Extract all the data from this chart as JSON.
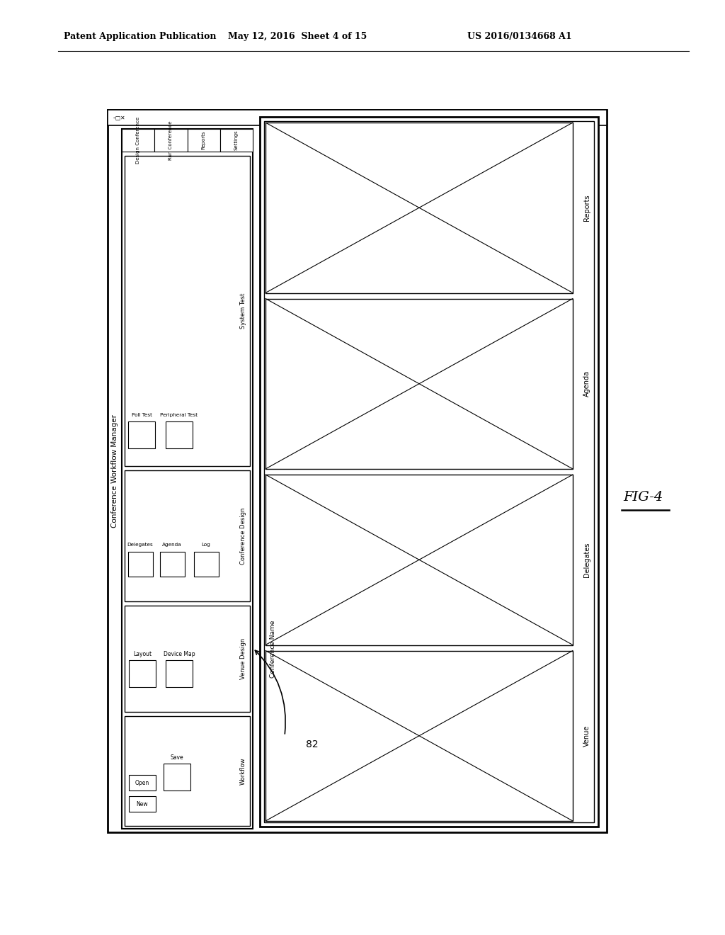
{
  "bg_color": "#ffffff",
  "header_left": "Patent Application Publication",
  "header_mid": "May 12, 2016  Sheet 4 of 15",
  "header_right": "US 2016/0134668 A1",
  "fig_label": "FIG-4"
}
